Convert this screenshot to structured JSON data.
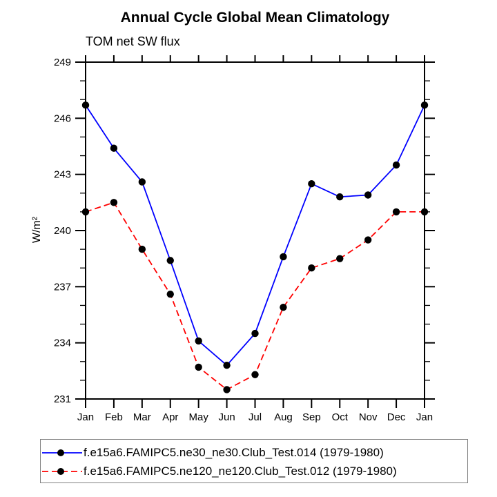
{
  "chart_data": {
    "type": "line",
    "title": "Annual Cycle Global Mean Climatology",
    "subtitle": "TOM net SW flux",
    "ylabel": "W/m²",
    "xlabel": "",
    "categories": [
      "Jan",
      "Feb",
      "Mar",
      "Apr",
      "May",
      "Jun",
      "Jul",
      "Aug",
      "Sep",
      "Oct",
      "Nov",
      "Dec",
      "Jan"
    ],
    "ylim": [
      231,
      249
    ],
    "yticks_major": [
      231,
      234,
      237,
      240,
      243,
      246,
      249
    ],
    "ytick_minor_step": 1,
    "grid": false,
    "axis_color": "#000000",
    "marker_color": "#000000",
    "legend_position": "bottom",
    "legend_border_color": "#808080",
    "series": [
      {
        "name": "f.e15a6.FAMIPC5.ne30_ne30.Club_Test.014 (1979-1980)",
        "color": "#0000ff",
        "style": "solid",
        "marker": "circle",
        "values": [
          246.7,
          244.4,
          242.6,
          238.4,
          234.1,
          232.8,
          234.5,
          238.6,
          242.5,
          241.8,
          241.9,
          243.5,
          246.7
        ]
      },
      {
        "name": "f.e15a6.FAMIPC5.ne120_ne120.Club_Test.012 (1979-1980)",
        "color": "#ff0000",
        "style": "dashed",
        "marker": "circle",
        "values": [
          241.0,
          241.5,
          239.0,
          236.6,
          232.7,
          231.5,
          232.3,
          235.9,
          238.0,
          238.5,
          239.5,
          241.0,
          241.0
        ]
      }
    ]
  }
}
